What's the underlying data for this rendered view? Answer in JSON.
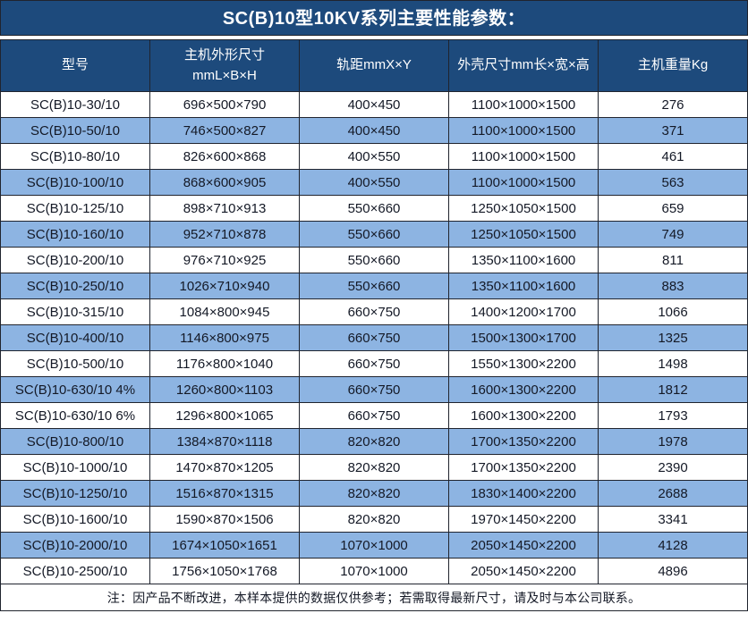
{
  "title": "SC(B)10型10KV系列主要性能参数：",
  "colors": {
    "header_bg": "#1d4a7c",
    "header_text": "#ffffff",
    "stripe_bg": "#8db4e2",
    "row_bg": "#ffffff",
    "border": "#20242e",
    "text": "#141926"
  },
  "table": {
    "columns": [
      "型号",
      "主机外形尺寸\nmmL×B×H",
      "轨距mmX×Y",
      "外壳尺寸mm长×宽×高",
      "主机重量Kg"
    ],
    "rows": [
      [
        "SC(B)10-30/10",
        "696×500×790",
        "400×450",
        "1100×1000×1500",
        "276"
      ],
      [
        "SC(B)10-50/10",
        "746×500×827",
        "400×450",
        "1100×1000×1500",
        "371"
      ],
      [
        "SC(B)10-80/10",
        "826×600×868",
        "400×550",
        "1100×1000×1500",
        "461"
      ],
      [
        "SC(B)10-100/10",
        "868×600×905",
        "400×550",
        "1100×1000×1500",
        "563"
      ],
      [
        "SC(B)10-125/10",
        "898×710×913",
        "550×660",
        "1250×1050×1500",
        "659"
      ],
      [
        "SC(B)10-160/10",
        "952×710×878",
        "550×660",
        "1250×1050×1500",
        "749"
      ],
      [
        "SC(B)10-200/10",
        "976×710×925",
        "550×660",
        "1350×1100×1600",
        "811"
      ],
      [
        "SC(B)10-250/10",
        "1026×710×940",
        "550×660",
        "1350×1100×1600",
        "883"
      ],
      [
        "SC(B)10-315/10",
        "1084×800×945",
        "660×750",
        "1400×1200×1700",
        "1066"
      ],
      [
        "SC(B)10-400/10",
        "1146×800×975",
        "660×750",
        "1500×1300×1700",
        "1325"
      ],
      [
        "SC(B)10-500/10",
        "1176×800×1040",
        "660×750",
        "1550×1300×2200",
        "1498"
      ],
      [
        "SC(B)10-630/10 4%",
        "1260×800×1103",
        "660×750",
        "1600×1300×2200",
        "1812"
      ],
      [
        "SC(B)10-630/10 6%",
        "1296×800×1065",
        "660×750",
        "1600×1300×2200",
        "1793"
      ],
      [
        "SC(B)10-800/10",
        "1384×870×1118",
        "820×820",
        "1700×1350×2200",
        "1978"
      ],
      [
        "SC(B)10-1000/10",
        "1470×870×1205",
        "820×820",
        "1700×1350×2200",
        "2390"
      ],
      [
        "SC(B)10-1250/10",
        "1516×870×1315",
        "820×820",
        "1830×1400×2200",
        "2688"
      ],
      [
        "SC(B)10-1600/10",
        "1590×870×1506",
        "820×820",
        "1970×1450×2200",
        "3341"
      ],
      [
        "SC(B)10-2000/10",
        "1674×1050×1651",
        "1070×1000",
        "2050×1450×2200",
        "4128"
      ],
      [
        "SC(B)10-2500/10",
        "1756×1050×1768",
        "1070×1000",
        "2050×1450×2200",
        "4896"
      ]
    ]
  },
  "note": "注：因产品不断改进，本样本提供的数据仅供参考；若需取得最新尺寸，请及时与本公司联系。"
}
